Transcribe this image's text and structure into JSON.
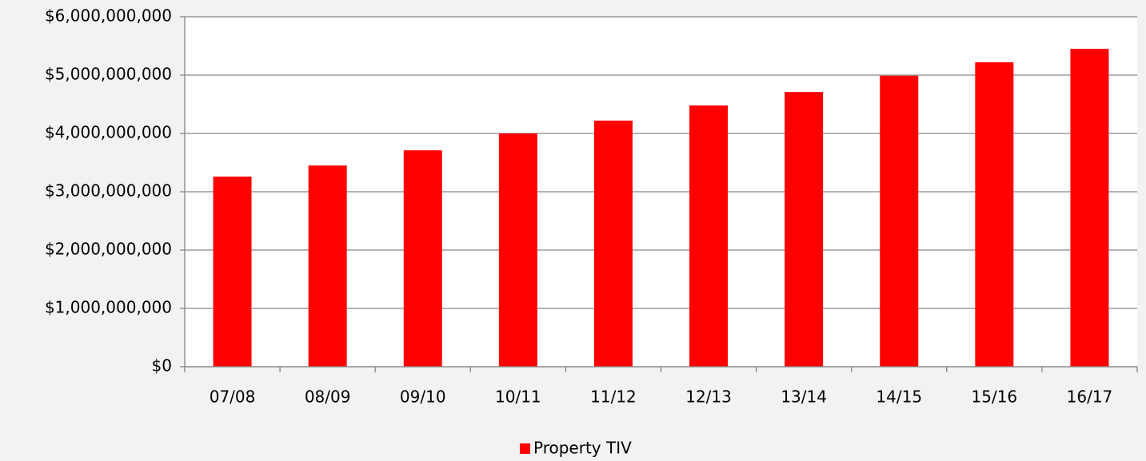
{
  "chart_data": {
    "type": "bar",
    "categories": [
      "07/08",
      "08/09",
      "09/10",
      "10/11",
      "11/12",
      "12/13",
      "13/14",
      "14/15",
      "15/16",
      "16/17"
    ],
    "series": [
      {
        "name": "Property TIV",
        "color": "#ff0000",
        "values": [
          3260000000,
          3450000000,
          3710000000,
          4000000000,
          4220000000,
          4480000000,
          4710000000,
          4990000000,
          5220000000,
          5450000000
        ]
      }
    ],
    "ylim": [
      0,
      6000000000
    ],
    "yticks": [
      {
        "value": 0,
        "label": "$0"
      },
      {
        "value": 1000000000,
        "label": "$1,000,000,000"
      },
      {
        "value": 2000000000,
        "label": "$2,000,000,000"
      },
      {
        "value": 3000000000,
        "label": "$3,000,000,000"
      },
      {
        "value": 4000000000,
        "label": "$4,000,000,000"
      },
      {
        "value": 5000000000,
        "label": "$5,000,000,000"
      },
      {
        "value": 6000000000,
        "label": "$6,000,000,000"
      }
    ],
    "grid": true,
    "legend": "bottom"
  }
}
